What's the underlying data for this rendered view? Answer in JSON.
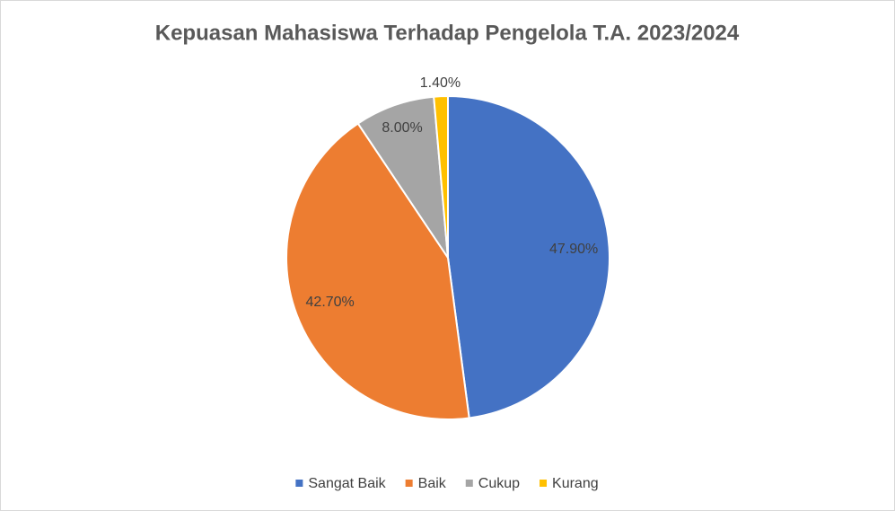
{
  "chart_data": {
    "type": "pie",
    "title": "Kepuasan Mahasiswa Terhadap Pengelola T.A. 2023/2024",
    "categories": [
      "Sangat Baik",
      "Baik",
      "Cukup",
      "Kurang"
    ],
    "values": [
      47.9,
      42.7,
      8.0,
      1.4
    ],
    "value_labels": [
      "47.90%",
      "42.70%",
      "8.00%",
      "1.40%"
    ],
    "colors": [
      "#4472c4",
      "#ed7d31",
      "#a5a5a5",
      "#ffc000"
    ],
    "legend": "bottom"
  }
}
